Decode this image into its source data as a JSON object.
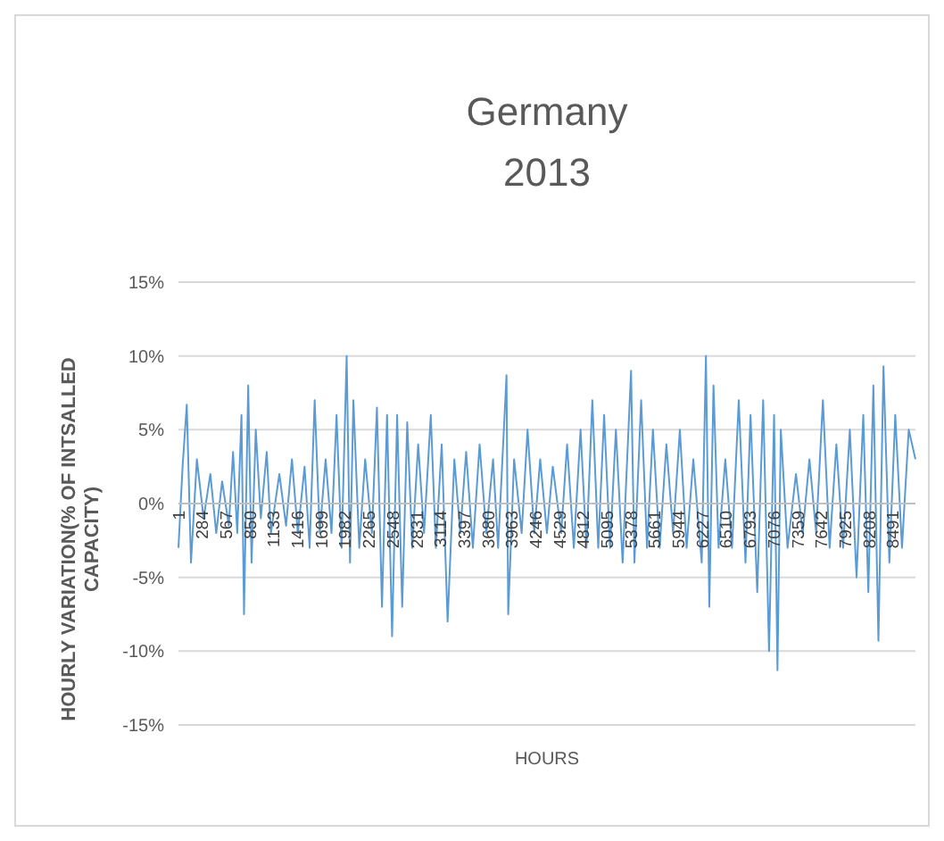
{
  "chart_data": {
    "type": "line",
    "title": "Germany",
    "subtitle": "2013",
    "xlabel": "HOURS",
    "ylabel": "HOURLY VARIATION(% OF INTSALLED CAPACITY)",
    "xlim": [
      1,
      8760
    ],
    "xticks": [
      1,
      284,
      567,
      850,
      1133,
      1416,
      1699,
      1982,
      2265,
      2548,
      2831,
      3114,
      3397,
      3680,
      3963,
      4246,
      4529,
      4812,
      5095,
      5378,
      5661,
      5944,
      6227,
      6510,
      6793,
      7076,
      7359,
      7642,
      7925,
      8208,
      8491
    ],
    "ylim": [
      -15,
      15
    ],
    "yticks": [
      {
        "value": -15,
        "label": "-15%"
      },
      {
        "value": -10,
        "label": "-10%"
      },
      {
        "value": -5,
        "label": "-5%"
      },
      {
        "value": 0,
        "label": "0%"
      },
      {
        "value": 5,
        "label": "5%"
      },
      {
        "value": 10,
        "label": "10%"
      },
      {
        "value": 15,
        "label": "15%"
      }
    ],
    "grid": "y",
    "marker": "none",
    "line_style": "solid",
    "series": [
      {
        "color": "#5b9bd5",
        "x": [
          1,
          50,
          100,
          150,
          220,
          300,
          380,
          450,
          520,
          600,
          650,
          700,
          750,
          780,
          830,
          870,
          920,
          980,
          1050,
          1100,
          1200,
          1280,
          1350,
          1420,
          1500,
          1560,
          1620,
          1680,
          1750,
          1820,
          1880,
          1940,
          2000,
          2040,
          2080,
          2150,
          2220,
          2300,
          2360,
          2420,
          2480,
          2540,
          2600,
          2660,
          2720,
          2780,
          2850,
          2920,
          3000,
          3060,
          3130,
          3200,
          3280,
          3350,
          3420,
          3500,
          3580,
          3660,
          3740,
          3800,
          3900,
          3920,
          3990,
          4080,
          4150,
          4230,
          4300,
          4380,
          4450,
          4550,
          4620,
          4700,
          4780,
          4850,
          4920,
          4990,
          5060,
          5130,
          5200,
          5280,
          5380,
          5420,
          5500,
          5570,
          5640,
          5720,
          5800,
          5880,
          5960,
          6040,
          6120,
          6220,
          6270,
          6310,
          6360,
          6420,
          6500,
          6580,
          6660,
          6740,
          6800,
          6880,
          6950,
          7020,
          7080,
          7120,
          7160,
          7240,
          7340,
          7420,
          7500,
          7580,
          7660,
          7740,
          7820,
          7900,
          7980,
          8060,
          8140,
          8200,
          8260,
          8320,
          8380,
          8450,
          8520,
          8600,
          8680,
          8760
        ],
        "values": [
          -3,
          2.5,
          6.7,
          -4,
          3,
          -1,
          2,
          -2,
          1.5,
          -1.5,
          3.5,
          -2,
          6,
          -7.5,
          8,
          -4,
          5,
          -1,
          3.5,
          -2,
          2,
          -1.5,
          3,
          -2,
          2.5,
          -3,
          7,
          -2,
          3,
          -2,
          6,
          -3,
          10,
          -4,
          7,
          -3,
          3,
          -2,
          6.5,
          -7,
          6,
          -9,
          6,
          -7,
          5.5,
          -3,
          4,
          -2,
          6,
          -3,
          4,
          -8,
          3,
          -2,
          3.5,
          -3,
          4,
          -2,
          3,
          -3,
          8.7,
          -7.5,
          3,
          -2,
          5,
          -2,
          3,
          -2,
          2.5,
          -2,
          4,
          -3,
          5,
          -3,
          7,
          -3,
          6,
          -3,
          5,
          -4,
          9,
          -4,
          7,
          -3,
          5,
          -3,
          4,
          -2,
          5,
          -3,
          3,
          -4,
          10,
          -7,
          8,
          -3,
          3,
          -3,
          7,
          -4,
          6,
          -6,
          7,
          -10,
          6,
          -11.3,
          5,
          -3,
          2,
          -2,
          3,
          -2,
          7,
          -3,
          4,
          -3,
          5,
          -5,
          6,
          -6,
          8,
          -9.3,
          9.3,
          -4,
          6,
          -3,
          5,
          3
        ]
      }
    ]
  }
}
